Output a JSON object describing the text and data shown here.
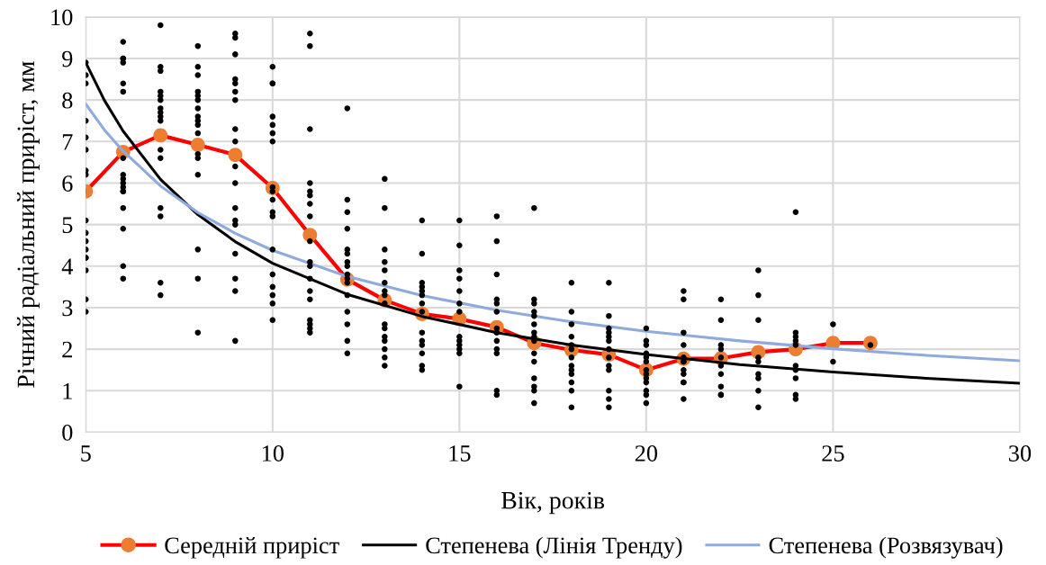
{
  "chart_data": {
    "type": "scatter",
    "xlabel": "Вік, років",
    "ylabel": "Річний радіальний приріст, мм",
    "xlim": [
      5,
      30
    ],
    "xticks": [
      5,
      10,
      15,
      20,
      25,
      30
    ],
    "ylim": [
      0,
      10
    ],
    "yticks": [
      0,
      1,
      2,
      3,
      4,
      5,
      6,
      7,
      8,
      9,
      10
    ],
    "grid": true,
    "legend": "bottom",
    "series": [
      {
        "color": "#000000",
        "marker": "circle",
        "x": [
          5,
          5,
          5,
          5,
          5,
          5,
          5,
          5,
          5,
          5,
          5,
          5,
          5,
          5,
          5,
          5,
          5,
          6,
          6,
          6,
          6,
          6,
          6,
          6,
          6,
          6,
          6,
          6,
          6,
          6,
          6,
          6,
          6,
          6,
          7,
          7,
          7,
          7,
          7,
          7,
          7,
          7,
          7,
          7,
          7,
          7,
          7,
          7,
          7,
          7,
          8,
          8,
          8,
          8,
          8,
          8,
          8,
          8,
          8,
          8,
          8,
          8,
          8,
          8,
          8,
          8,
          8,
          9,
          9,
          9,
          9,
          9,
          9,
          9,
          9,
          9,
          9,
          9,
          9,
          9,
          9,
          9,
          9,
          9,
          9,
          10,
          10,
          10,
          10,
          10,
          10,
          10,
          10,
          10,
          10,
          10,
          10,
          10,
          10,
          10,
          10,
          10,
          10,
          11,
          11,
          11,
          11,
          11,
          11,
          11,
          11,
          11,
          11,
          11,
          11,
          11,
          11,
          11,
          11,
          11,
          11,
          12,
          12,
          12,
          12,
          12,
          12,
          12,
          12,
          12,
          12,
          12,
          12,
          12,
          12,
          12,
          12,
          13,
          13,
          13,
          13,
          13,
          13,
          13,
          13,
          13,
          13,
          13,
          13,
          13,
          13,
          13,
          13,
          14,
          14,
          14,
          14,
          14,
          14,
          14,
          14,
          14,
          14,
          14,
          14,
          14,
          14,
          15,
          15,
          15,
          15,
          15,
          15,
          15,
          15,
          15,
          15,
          15,
          15,
          15,
          16,
          16,
          16,
          16,
          16,
          16,
          16,
          16,
          16,
          16,
          16,
          16,
          16,
          17,
          17,
          17,
          17,
          17,
          17,
          17,
          17,
          17,
          17,
          17,
          17,
          17,
          17,
          17,
          18,
          18,
          18,
          18,
          18,
          18,
          18,
          18,
          18,
          18,
          18,
          18,
          18,
          19,
          19,
          19,
          19,
          19,
          19,
          19,
          19,
          19,
          19,
          19,
          19,
          19,
          20,
          20,
          20,
          20,
          20,
          20,
          20,
          20,
          20,
          20,
          20,
          20,
          20,
          21,
          21,
          21,
          21,
          21,
          21,
          21,
          21,
          21,
          21,
          21,
          21,
          22,
          22,
          22,
          22,
          22,
          22,
          22,
          22,
          22,
          22,
          23,
          23,
          23,
          23,
          23,
          23,
          23,
          23,
          23,
          24,
          24,
          24,
          24,
          24,
          24,
          24,
          24,
          24,
          24,
          25,
          25,
          26
        ],
        "values": [
          8.9,
          8.6,
          8.4,
          7.5,
          7.1,
          6.8,
          6.3,
          6.2,
          5.1,
          4.8,
          4.6,
          4.4,
          4.2,
          4.2,
          3.9,
          3.2,
          2.9,
          9.4,
          9.0,
          9.0,
          8.9,
          8.4,
          8.2,
          6.6,
          6.2,
          6.1,
          6.0,
          5.9,
          5.8,
          5.8,
          5.4,
          4.9,
          4.0,
          3.7,
          9.8,
          8.8,
          8.7,
          8.2,
          8.1,
          8.0,
          7.8,
          7.7,
          7.6,
          7.5,
          6.8,
          6.6,
          5.4,
          5.2,
          3.6,
          3.3,
          9.3,
          8.8,
          8.6,
          8.2,
          8.1,
          8.0,
          7.8,
          7.6,
          7.5,
          7.4,
          7.2,
          6.7,
          6.6,
          6.2,
          4.4,
          3.7,
          2.4,
          9.6,
          9.5,
          9.1,
          8.5,
          8.4,
          8.2,
          8.0,
          7.3,
          7.0,
          6.4,
          6.0,
          5.4,
          5.1,
          5.0,
          4.3,
          3.7,
          3.4,
          2.2,
          8.8,
          8.4,
          8.4,
          7.6,
          7.4,
          7.2,
          7.0,
          5.9,
          5.8,
          5.6,
          5.3,
          5.2,
          4.4,
          3.8,
          3.5,
          3.3,
          3.1,
          2.7,
          9.6,
          9.3,
          7.3,
          6.0,
          5.8,
          5.7,
          5.5,
          5.2,
          4.6,
          4.1,
          4.0,
          3.7,
          3.4,
          3.2,
          2.7,
          2.6,
          2.5,
          2.4,
          7.8,
          5.6,
          5.3,
          4.9,
          4.4,
          4.3,
          4.1,
          4.0,
          3.8,
          3.7,
          3.6,
          3.3,
          2.9,
          2.6,
          2.2,
          1.9,
          6.1,
          5.4,
          4.4,
          4.1,
          3.9,
          3.6,
          3.4,
          3.3,
          3.1,
          2.6,
          2.5,
          2.3,
          2.2,
          2.0,
          1.8,
          1.6,
          5.1,
          4.3,
          3.6,
          3.5,
          3.4,
          3.3,
          3.1,
          2.9,
          2.4,
          2.2,
          2.1,
          1.9,
          1.6,
          1.5,
          5.1,
          4.5,
          3.9,
          3.7,
          3.4,
          3.1,
          2.9,
          2.3,
          2.2,
          2.1,
          2.0,
          1.9,
          1.1,
          5.2,
          4.6,
          3.8,
          3.2,
          3.1,
          2.9,
          2.5,
          2.4,
          2.2,
          2.0,
          1.9,
          1.0,
          0.9,
          5.4,
          3.2,
          3.1,
          2.9,
          2.8,
          2.6,
          2.4,
          2.3,
          2.2,
          1.9,
          1.7,
          1.3,
          1.1,
          1.0,
          0.7,
          3.6,
          2.9,
          2.6,
          2.3,
          2.1,
          2.0,
          1.8,
          1.6,
          1.5,
          1.4,
          1.2,
          1.0,
          0.6,
          3.6,
          2.8,
          2.5,
          2.4,
          2.3,
          2.2,
          2.0,
          1.8,
          1.6,
          1.5,
          1.0,
          0.8,
          0.6,
          2.5,
          2.2,
          2.1,
          1.9,
          1.8,
          1.7,
          1.5,
          1.4,
          1.3,
          1.2,
          1.0,
          0.9,
          0.7,
          3.4,
          3.2,
          2.4,
          2.1,
          1.8,
          1.7,
          1.7,
          1.5,
          1.4,
          1.2,
          1.2,
          0.8,
          3.2,
          2.7,
          2.1,
          2.0,
          1.8,
          1.6,
          1.4,
          1.1,
          0.9,
          0.9,
          3.9,
          3.3,
          2.7,
          1.8,
          1.7,
          1.4,
          1.3,
          1.0,
          0.6,
          5.3,
          2.4,
          2.3,
          2.2,
          2.1,
          1.6,
          1.5,
          1.3,
          0.9,
          0.8,
          2.6,
          1.7,
          2.1
        ]
      },
      {
        "type": "line",
        "name": "Середній приріст",
        "color": "#ff0000",
        "marker": "circle",
        "colors": [
          "#ed7d31",
          "#ed7d31",
          "#ed7d31",
          "#ed7d31",
          "#ed7d31",
          "#ed7d31",
          "#ed7d31",
          "#ed7d31",
          "#ed7d31",
          "#ed7d31",
          "#ed7d31",
          "#ed7d31",
          "#ed7d31",
          "#ed7d31",
          "#ed7d31",
          "#ed7d31",
          "#ed7d31",
          "#ed7d31",
          "#ed7d31",
          "#ed7d31",
          "#ed7d31",
          "#ed7d31"
        ],
        "x": [
          5,
          6,
          7,
          8,
          9,
          10,
          11,
          12,
          13,
          14,
          15,
          16,
          17,
          18,
          19,
          20,
          21,
          22,
          23,
          24,
          25,
          26
        ],
        "values": [
          5.8,
          6.75,
          7.15,
          6.92,
          6.68,
          5.88,
          4.75,
          3.68,
          3.18,
          2.85,
          2.73,
          2.53,
          2.15,
          1.98,
          1.87,
          1.5,
          1.77,
          1.78,
          1.93,
          2.0,
          2.15,
          2.15
        ]
      },
      {
        "type": "line",
        "name": "Степенева (Лінія Тренду)",
        "color": "#000000",
        "marker": "none",
        "x": [
          5,
          5.5,
          6,
          7,
          8,
          9,
          10,
          12,
          14,
          16,
          18,
          20,
          22.5,
          25,
          27.5,
          30
        ],
        "values": [
          8.9,
          7.99,
          7.25,
          6.09,
          5.24,
          4.59,
          4.07,
          3.32,
          2.79,
          2.4,
          2.1,
          1.87,
          1.63,
          1.45,
          1.3,
          1.18
        ]
      },
      {
        "type": "line",
        "name": "Степенева (Розвязувач)",
        "color": "#8faadc",
        "marker": "none",
        "x": [
          5,
          5.5,
          6,
          7,
          8,
          9,
          10,
          12,
          14,
          16,
          18,
          20,
          22.5,
          25,
          27.5,
          30
        ],
        "values": [
          7.9,
          7.28,
          6.77,
          5.93,
          5.29,
          4.79,
          4.38,
          3.75,
          3.29,
          2.94,
          2.66,
          2.43,
          2.2,
          2.01,
          1.85,
          1.72
        ]
      }
    ]
  }
}
